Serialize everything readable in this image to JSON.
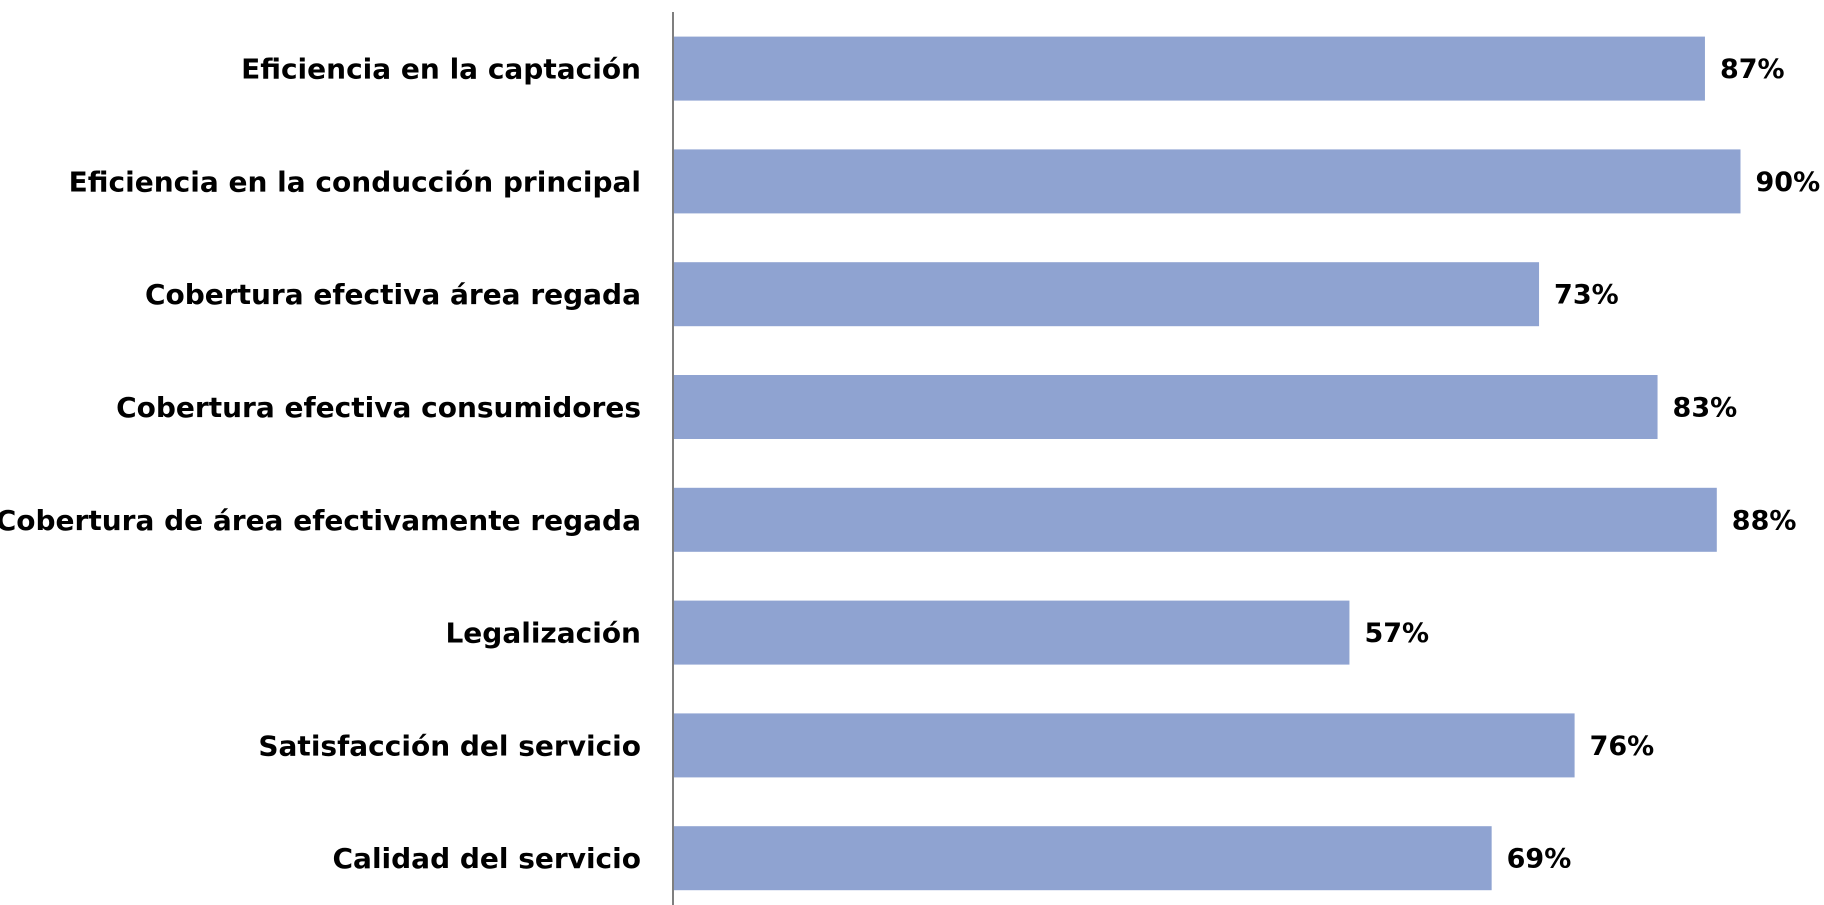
{
  "chart_data": {
    "type": "bar",
    "orientation": "horizontal",
    "categories": [
      "Eficiencia en la captación",
      "Eficiencia en la conducción principal",
      "Cobertura efectiva área regada",
      "Cobertura efectiva consumidores",
      "Cobertura de área efectivamente regada",
      "Legalización",
      "Satisfacción del servicio",
      "Calidad del servicio"
    ],
    "values": [
      87,
      90,
      73,
      83,
      88,
      57,
      76,
      69
    ],
    "value_labels": [
      "87%",
      "90%",
      "73%",
      "83%",
      "88%",
      "57%",
      "76%",
      "69%"
    ],
    "color": "#8fa3d1"
  }
}
